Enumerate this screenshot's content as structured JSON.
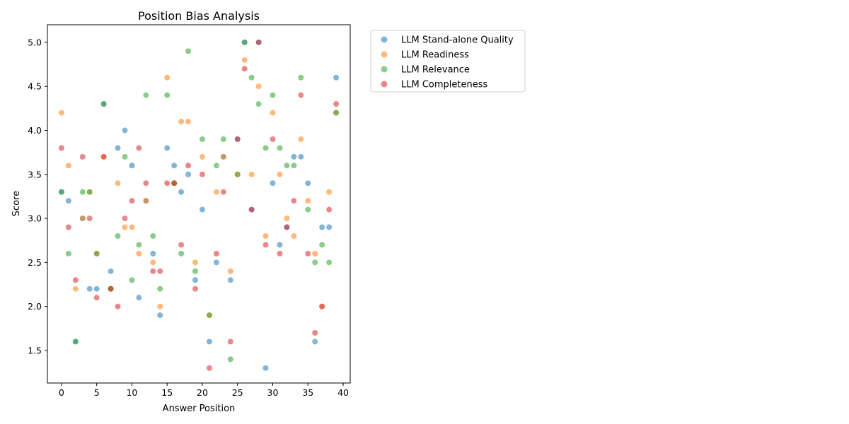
{
  "chart_data": {
    "type": "scatter",
    "title": "Position Bias Analysis",
    "xlabel": "Answer Position",
    "ylabel": "Score",
    "xlim": [
      -2,
      41
    ],
    "ylim": [
      1.13,
      5.2
    ],
    "xticks": [
      0,
      5,
      10,
      15,
      20,
      25,
      30,
      35,
      40
    ],
    "yticks": [
      1.5,
      2.0,
      2.5,
      3.0,
      3.5,
      4.0,
      4.5,
      5.0
    ],
    "ytick_labels": [
      "1.5",
      "2.0",
      "2.5",
      "3.0",
      "3.5",
      "4.0",
      "4.5",
      "5.0"
    ],
    "grid": false,
    "legend_position": "outside-top-right",
    "x": [
      0,
      1,
      2,
      3,
      4,
      5,
      6,
      7,
      8,
      9,
      10,
      11,
      12,
      13,
      14,
      15,
      16,
      17,
      18,
      19,
      20,
      21,
      22,
      23,
      24,
      25,
      26,
      27,
      28,
      29,
      30,
      31,
      32,
      33,
      34,
      35,
      36,
      37,
      38,
      39
    ],
    "series": [
      {
        "name": "LLM Stand-alone Quality",
        "color": "#1f77b4",
        "values": [
          3.3,
          3.2,
          1.6,
          3.0,
          2.2,
          2.2,
          4.3,
          2.4,
          3.8,
          4.0,
          3.6,
          2.1,
          3.2,
          2.6,
          1.9,
          3.8,
          3.6,
          3.3,
          3.5,
          2.3,
          3.1,
          1.6,
          2.5,
          3.7,
          2.3,
          3.9,
          5.0,
          3.1,
          5.0,
          1.3,
          3.4,
          2.7,
          2.9,
          3.7,
          3.7,
          3.4,
          1.6,
          2.9,
          2.9,
          4.6
        ]
      },
      {
        "name": "LLM Readiness",
        "color": "#ff7f0e",
        "values": [
          4.2,
          3.6,
          2.2,
          3.0,
          3.3,
          2.6,
          3.7,
          2.2,
          3.4,
          2.9,
          2.9,
          2.6,
          3.2,
          2.5,
          2.0,
          4.6,
          3.4,
          4.1,
          4.1,
          2.5,
          3.7,
          1.9,
          3.3,
          3.7,
          2.4,
          3.5,
          4.8,
          3.5,
          4.5,
          2.8,
          4.2,
          3.5,
          3.0,
          2.8,
          3.9,
          3.2,
          2.6,
          2.0,
          3.3,
          4.2
        ]
      },
      {
        "name": "LLM Relevance",
        "color": "#2ca02c",
        "values": [
          3.3,
          2.6,
          1.6,
          3.3,
          3.3,
          2.6,
          4.3,
          2.2,
          2.8,
          3.7,
          2.3,
          2.7,
          4.4,
          2.8,
          2.2,
          4.4,
          3.4,
          2.6,
          4.9,
          2.4,
          3.9,
          1.9,
          3.6,
          3.9,
          1.4,
          3.5,
          5.0,
          4.6,
          4.3,
          3.8,
          4.4,
          3.8,
          3.6,
          3.6,
          4.6,
          3.1,
          2.5,
          2.7,
          2.5,
          4.2
        ]
      },
      {
        "name": "LLM Completeness",
        "color": "#d62728",
        "values": [
          3.8,
          2.9,
          2.3,
          3.7,
          3.0,
          2.1,
          3.7,
          2.2,
          2.0,
          3.0,
          3.2,
          3.8,
          3.4,
          2.4,
          2.4,
          3.4,
          3.4,
          2.7,
          3.6,
          2.2,
          3.5,
          1.3,
          2.6,
          3.3,
          1.6,
          3.9,
          4.7,
          3.1,
          5.0,
          2.7,
          3.9,
          2.6,
          2.9,
          3.2,
          4.4,
          2.6,
          1.7,
          2.0,
          3.1,
          4.3
        ]
      }
    ]
  }
}
